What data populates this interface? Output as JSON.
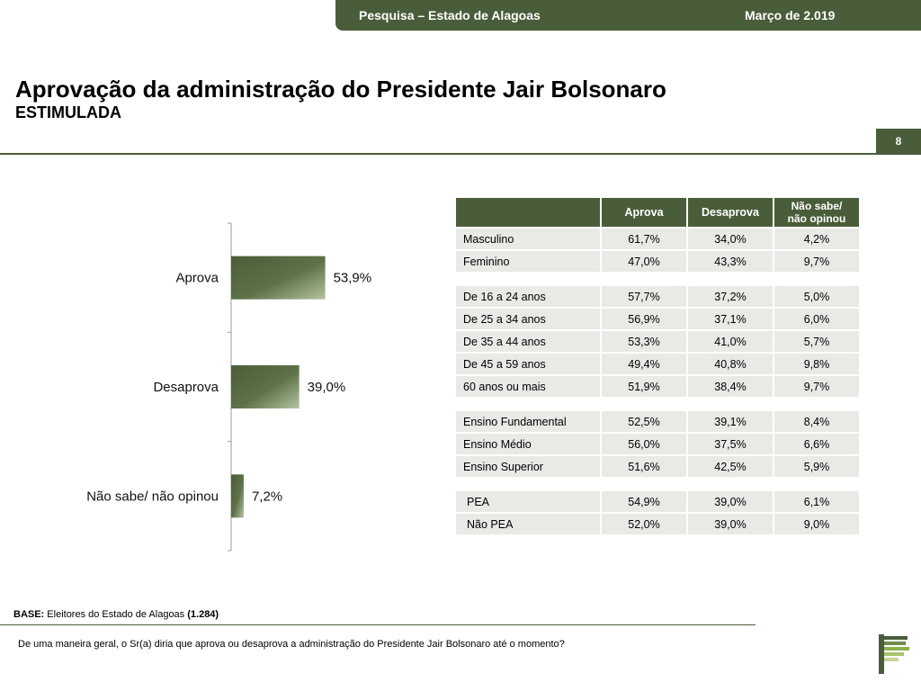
{
  "header": {
    "survey_title": "Pesquisa – Estado de Alagoas",
    "date": "Março de 2.019"
  },
  "page": {
    "title": "Aprovação da administração do Presidente Jair Bolsonaro",
    "subtitle": "ESTIMULADA",
    "number": "8"
  },
  "chart_data": {
    "type": "bar",
    "orientation": "horizontal",
    "categories": [
      "Aprova",
      "Desaprova",
      "Não sabe/ não opinou"
    ],
    "values": [
      53.9,
      39.0,
      7.2
    ],
    "value_labels": [
      "53,9%",
      "39,0%",
      "7,2%"
    ],
    "unit": "%",
    "colors": {
      "bar_dark": "#4a5d3a",
      "bar_light": "#b5c4a2"
    }
  },
  "table": {
    "columns": [
      "Aprova",
      "Desaprova",
      "Não sabe/\nnão opinou"
    ],
    "column_line1": "Não sabe/",
    "column_line2": "não opinou",
    "groups": [
      [
        {
          "label": "Masculino",
          "values": [
            "61,7%",
            "34,0%",
            "4,2%"
          ]
        },
        {
          "label": "Feminino",
          "values": [
            "47,0%",
            "43,3%",
            "9,7%"
          ]
        }
      ],
      [
        {
          "label": "De 16 a 24 anos",
          "values": [
            "57,7%",
            "37,2%",
            "5,0%"
          ]
        },
        {
          "label": "De 25 a 34 anos",
          "values": [
            "56,9%",
            "37,1%",
            "6,0%"
          ]
        },
        {
          "label": "De 35 a 44 anos",
          "values": [
            "53,3%",
            "41,0%",
            "5,7%"
          ]
        },
        {
          "label": "De 45 a 59 anos",
          "values": [
            "49,4%",
            "40,8%",
            "9,8%"
          ]
        },
        {
          "label": "60 anos ou mais",
          "values": [
            "51,9%",
            "38,4%",
            "9,7%"
          ]
        }
      ],
      [
        {
          "label": "Ensino Fundamental",
          "values": [
            "52,5%",
            "39,1%",
            "8,4%"
          ]
        },
        {
          "label": "Ensino Médio",
          "values": [
            "56,0%",
            "37,5%",
            "6,6%"
          ]
        },
        {
          "label": "Ensino Superior",
          "values": [
            "51,6%",
            "42,5%",
            "5,9%"
          ]
        }
      ],
      [
        {
          "label": "PEA",
          "values": [
            "54,9%",
            "39,0%",
            "6,1%"
          ]
        },
        {
          "label": "Não PEA",
          "values": [
            "52,0%",
            "39,0%",
            "9,0%"
          ]
        }
      ]
    ]
  },
  "footer": {
    "base_label": "BASE:",
    "base_text": " Eleitores do Estado de Alagoas ",
    "base_count": "(1.284)",
    "question": "De uma maneira geral, o Sr(a) diria que aprova ou desaprova a administração do Presidente Jair Bolsonaro até o momento?"
  },
  "colors": {
    "brand_green": "#4a5d3a",
    "table_cell": "#e8eae6"
  }
}
